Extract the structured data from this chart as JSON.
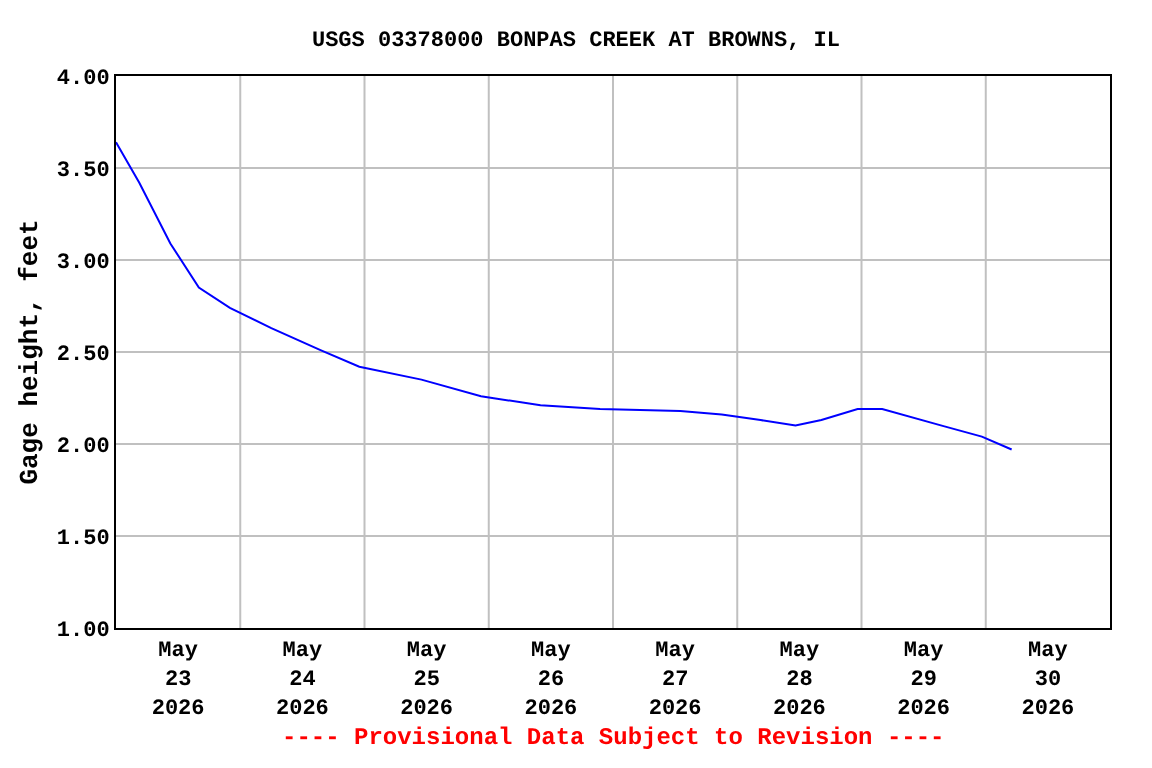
{
  "chart_data": {
    "type": "line",
    "title": "USGS 03378000 BONPAS CREEK AT BROWNS, IL",
    "ylabel": "Gage height, feet",
    "x": [
      "2026-05-23T00:00",
      "2026-05-23T04:30",
      "2026-05-23T10:30",
      "2026-05-23T16:00",
      "2026-05-23T22:00",
      "2026-05-24T06:00",
      "2026-05-24T15:30",
      "2026-05-24T23:00",
      "2026-05-25T11:00",
      "2026-05-25T22:30",
      "2026-05-26T10:00",
      "2026-05-26T21:30",
      "2026-05-27T13:00",
      "2026-05-27T21:00",
      "2026-05-28T04:30",
      "2026-05-28T11:15",
      "2026-05-28T16:15",
      "2026-05-28T23:15",
      "2026-05-29T04:00",
      "2026-05-29T15:30",
      "2026-05-29T23:15",
      "2026-05-30T05:00"
    ],
    "series": [
      {
        "color": "#0000ff",
        "values": [
          3.64,
          3.42,
          3.09,
          2.85,
          2.74,
          2.63,
          2.51,
          2.42,
          2.35,
          2.26,
          2.21,
          2.19,
          2.18,
          2.16,
          2.13,
          2.1,
          2.13,
          2.19,
          2.19,
          2.1,
          2.04,
          1.97
        ]
      }
    ],
    "xlim": [
      "2026-05-23T00:00",
      "2026-05-31T00:00"
    ],
    "xticks": [
      {
        "value": "2026-05-24T00:00",
        "label": null
      },
      {
        "value": "2026-05-25T00:00",
        "label": null
      },
      {
        "value": "2026-05-26T00:00",
        "label": null
      },
      {
        "value": "2026-05-27T00:00",
        "label": null
      },
      {
        "value": "2026-05-28T00:00",
        "label": null
      },
      {
        "value": "2026-05-29T00:00",
        "label": null
      },
      {
        "value": "2026-05-30T00:00",
        "label": null
      },
      {
        "value": "2026-05-23T12:00",
        "label": "May\n23\n2026"
      },
      {
        "value": "2026-05-24T12:00",
        "label": "May\n24\n2026"
      },
      {
        "value": "2026-05-25T12:00",
        "label": "May\n25\n2026"
      },
      {
        "value": "2026-05-26T12:00",
        "label": "May\n26\n2026"
      },
      {
        "value": "2026-05-27T12:00",
        "label": "May\n27\n2026"
      },
      {
        "value": "2026-05-28T12:00",
        "label": "May\n28\n2026"
      },
      {
        "value": "2026-05-29T12:00",
        "label": "May\n29\n2026"
      },
      {
        "value": "2026-05-30T12:00",
        "label": "May\n30\n2026"
      }
    ],
    "ylim": [
      1,
      4
    ],
    "yticks": [
      {
        "value": 1,
        "label": "1.00"
      },
      {
        "value": 1.5,
        "label": "1.50"
      },
      {
        "value": 2,
        "label": "2.00"
      },
      {
        "value": 2.5,
        "label": "2.50"
      },
      {
        "value": 3,
        "label": "3.00"
      },
      {
        "value": 3.5,
        "label": "3.50"
      },
      {
        "value": 4,
        "label": "4.00"
      }
    ],
    "grid": true,
    "annotations": [
      "---- Provisional Data Subject to Revision ----"
    ]
  }
}
